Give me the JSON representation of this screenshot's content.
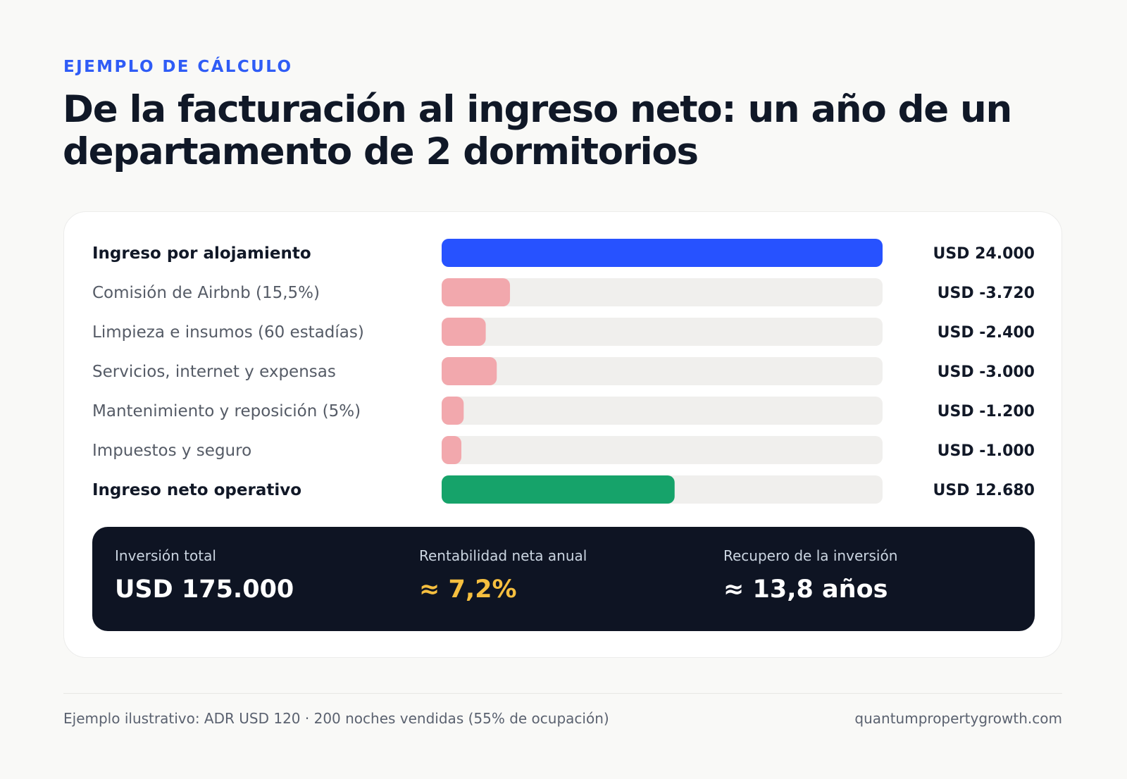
{
  "header": {
    "eyebrow": "EJEMPLO DE CÁLCULO",
    "title": "De la facturación al ingreso neto: un año de un departamento de 2 dormitorios"
  },
  "chart_data": {
    "type": "bar",
    "orientation": "horizontal",
    "categories": [
      "Ingreso por alojamiento",
      "Comisión de Airbnb (15,5%)",
      "Limpieza e insumos (60 estadías)",
      "Servicios, internet y expensas",
      "Mantenimiento y reposición (5%)",
      "Impuestos y seguro",
      "Ingreso neto operativo"
    ],
    "values": [
      24000,
      -3720,
      -2400,
      -3000,
      -1200,
      -1000,
      12680
    ],
    "value_labels": [
      "USD 24.000",
      "USD -3.720",
      "USD -2.400",
      "USD -3.000",
      "USD -1.200",
      "USD -1.000",
      "USD 12.680"
    ],
    "emphasis": [
      true,
      false,
      false,
      false,
      false,
      false,
      true
    ],
    "colors": {
      "income": "#2752ff",
      "expense": "#f2a8ad",
      "net": "#16a36a",
      "track": "#f0efed"
    },
    "grid": false,
    "legend": "none"
  },
  "summary": {
    "metrics": [
      {
        "label": "Inversión total",
        "value": "USD 175.000"
      },
      {
        "label": "Rentabilidad neta anual",
        "value": "≈ 7,2%"
      },
      {
        "label": "Recupero de la inversión",
        "value": "≈ 13,8 años"
      }
    ]
  },
  "footer": {
    "note": "Ejemplo ilustrativo: ADR USD 120 · 200 noches vendidas (55% de ocupación)",
    "source": "quantumpropertygrowth.com"
  }
}
